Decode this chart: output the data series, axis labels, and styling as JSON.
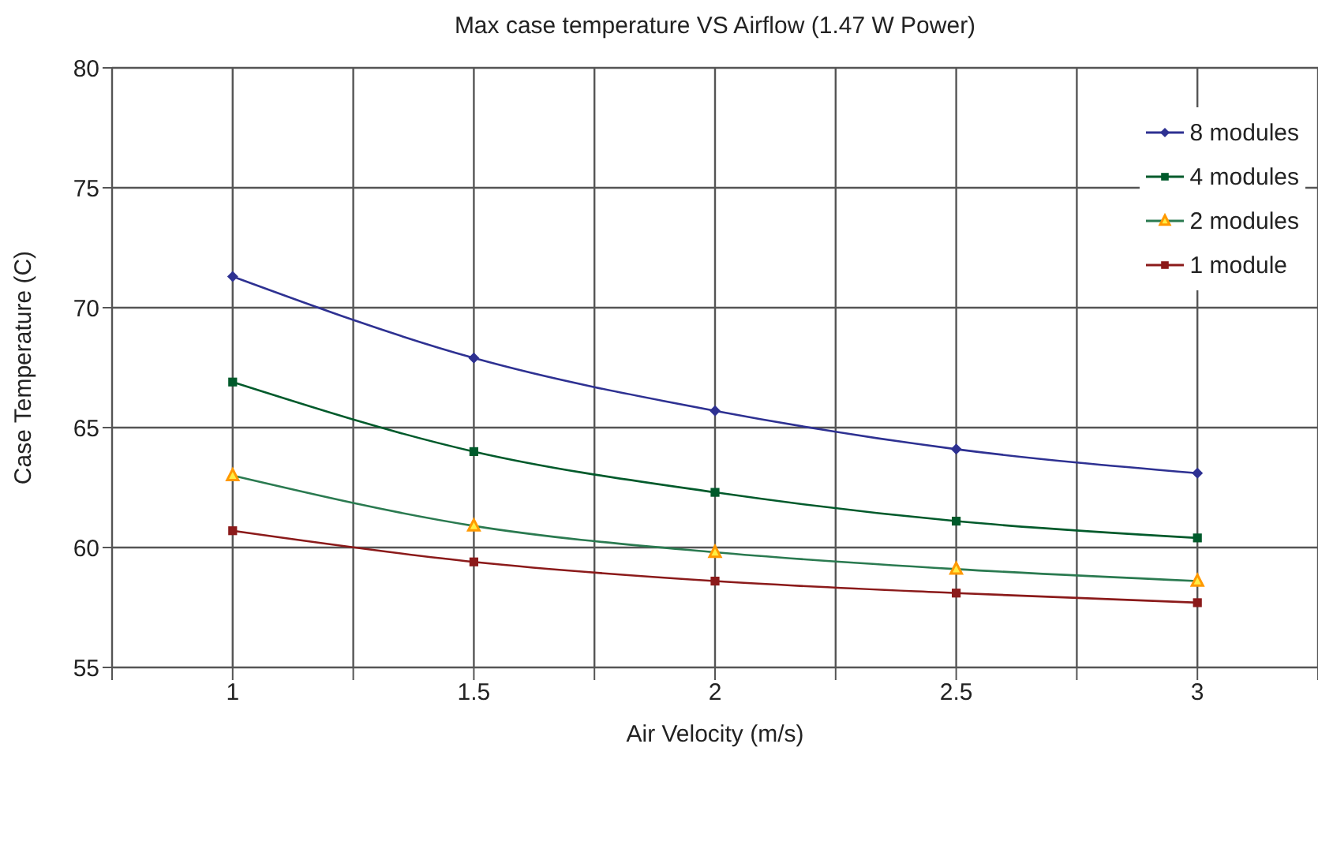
{
  "chart_data": {
    "type": "line",
    "title": "Max case temperature VS Airflow (1.47 W Power)",
    "xlabel": "Air Velocity (m/s)",
    "ylabel": "Case Temperature (C)",
    "x": [
      1,
      1.5,
      2,
      2.5,
      3
    ],
    "series": [
      {
        "name": "8 modules",
        "color": "#2e3192",
        "marker": "diamond",
        "values": [
          71.3,
          67.9,
          65.7,
          64.1,
          63.1
        ]
      },
      {
        "name": "4 modules",
        "color": "#005a2b",
        "marker": "square",
        "values": [
          66.9,
          64.0,
          62.3,
          61.1,
          60.4
        ]
      },
      {
        "name": "2 modules",
        "color": "#ff9900",
        "marker": "triangle",
        "values": [
          63.0,
          60.9,
          59.8,
          59.1,
          58.6
        ]
      },
      {
        "name": "1 module",
        "color": "#8b1a1a",
        "marker": "square",
        "values": [
          60.7,
          59.4,
          58.6,
          58.1,
          57.7
        ]
      }
    ],
    "xlim": [
      0.75,
      3.25
    ],
    "xticks": [
      {
        "value": 0.75,
        "label": null
      },
      1,
      {
        "value": 1.25,
        "label": null
      },
      1.5,
      {
        "value": 1.75,
        "label": null
      },
      2,
      {
        "value": 2.25,
        "label": null
      },
      2.5,
      {
        "value": 2.75,
        "label": null
      },
      3,
      {
        "value": 3.25,
        "label": null
      }
    ],
    "ylim": [
      55,
      80
    ],
    "yticks": [
      55,
      60,
      65,
      70,
      75,
      80
    ],
    "grid": true,
    "legend": "top right",
    "line_style": "solid"
  }
}
